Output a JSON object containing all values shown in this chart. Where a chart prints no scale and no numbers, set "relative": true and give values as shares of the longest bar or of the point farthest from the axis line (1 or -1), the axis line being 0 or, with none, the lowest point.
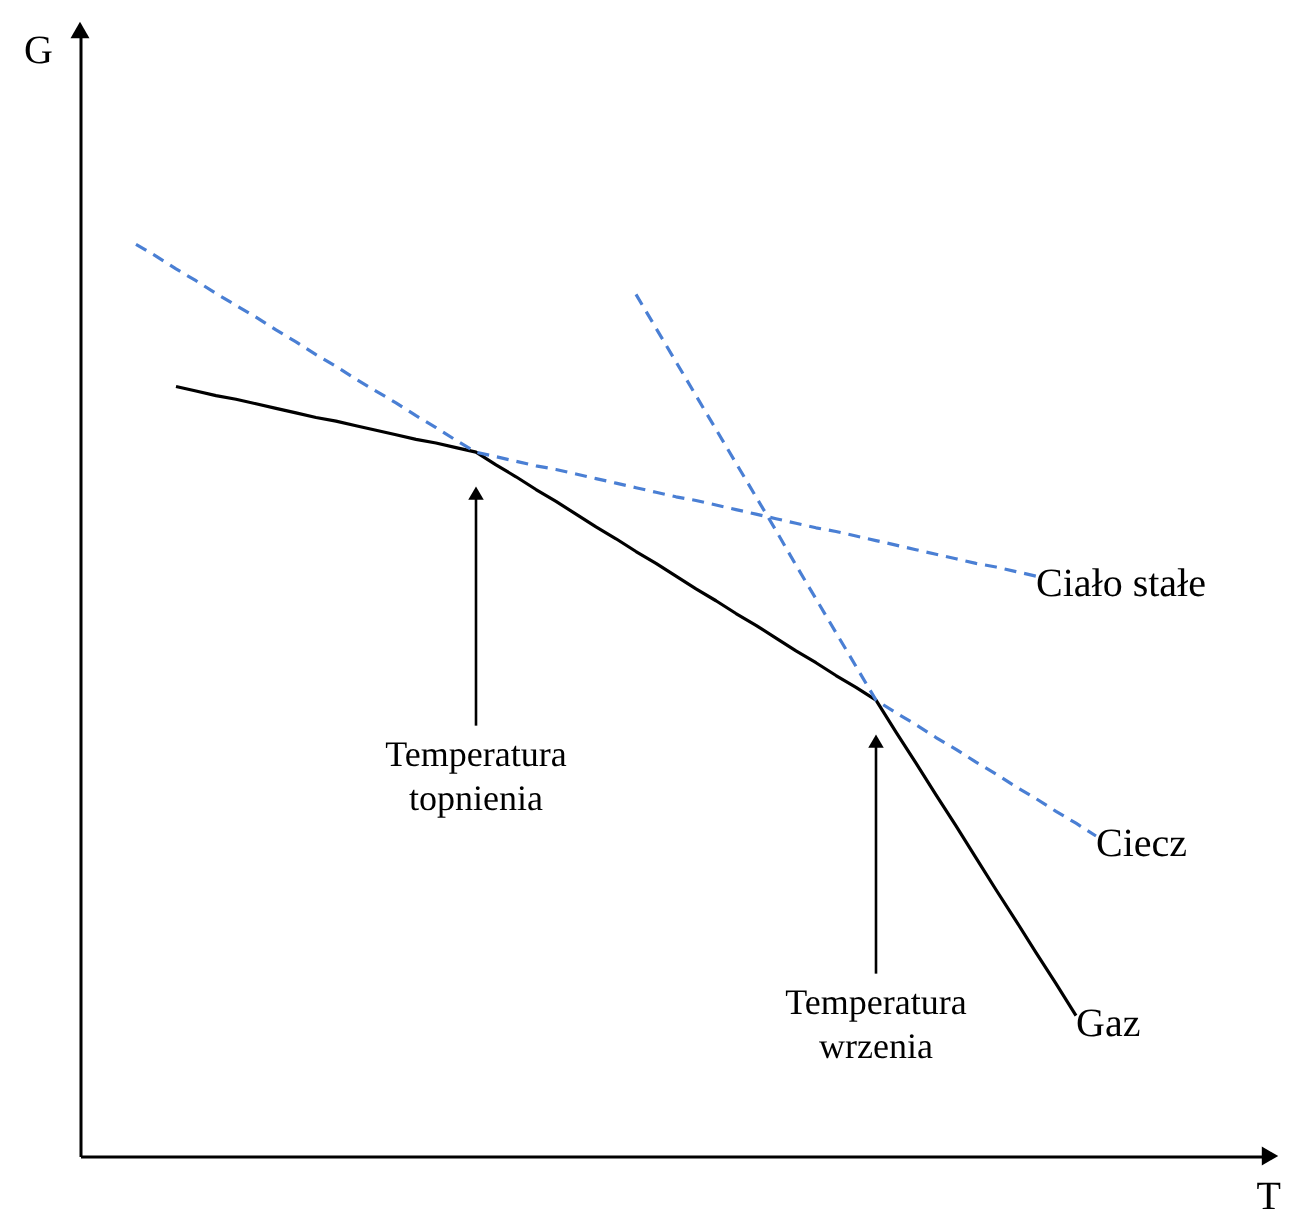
{
  "chart_data": {
    "type": "line",
    "relative": true,
    "xlabel": "T",
    "ylabel": "G",
    "marker": "none",
    "categories": [
      null,
      null,
      null,
      null,
      null,
      null,
      null,
      null,
      null,
      null,
      null,
      null,
      null,
      null,
      null,
      null,
      null,
      null,
      null,
      null,
      null,
      null,
      null,
      null,
      null,
      null,
      null,
      null,
      null,
      null,
      null,
      null,
      null,
      null,
      null,
      null,
      null,
      null,
      null,
      null,
      null,
      null,
      null,
      null,
      null,
      null,
      null,
      null,
      null
    ],
    "series": [
      {
        "name": "Gaz",
        "color": "#000000",
        "line_style": "solid",
        "values": [
          null,
          null,
          0.844,
          0.839,
          0.834,
          0.83,
          0.825,
          0.82,
          0.815,
          0.81,
          0.806,
          0.801,
          0.796,
          0.791,
          0.786,
          0.782,
          0.777,
          0.772,
          0.758,
          0.745,
          0.731,
          0.718,
          0.704,
          0.69,
          0.677,
          0.663,
          0.65,
          0.636,
          0.622,
          0.609,
          0.595,
          0.582,
          0.568,
          0.554,
          0.541,
          0.527,
          0.514,
          0.5,
          0.465,
          0.431,
          0.396,
          0.362,
          0.327,
          0.292,
          0.258,
          0.223,
          0.189,
          0.154,
          null
        ]
      },
      {
        "name": "Ciało stałe",
        "color": "#4a7fd4",
        "line_style": "dashed",
        "values": [
          1,
          0.987,
          0.973,
          0.96,
          0.946,
          0.933,
          0.92,
          0.906,
          0.893,
          0.879,
          0.866,
          0.852,
          0.839,
          0.826,
          0.812,
          0.799,
          0.785,
          0.772,
          0.767,
          0.762,
          0.757,
          0.753,
          0.748,
          0.743,
          0.738,
          0.733,
          0.728,
          0.723,
          0.719,
          0.714,
          0.709,
          0.704,
          0.699,
          0.694,
          0.689,
          0.685,
          0.68,
          0.675,
          0.67,
          0.665,
          0.66,
          0.655,
          0.65,
          0.646,
          0.641,
          0.636,
          null,
          null,
          null
        ]
      },
      {
        "name": "Ciecz",
        "color": "#4a7fd4",
        "line_style": "dashed",
        "values": [
          null,
          null,
          null,
          null,
          null,
          null,
          null,
          null,
          null,
          null,
          null,
          null,
          null,
          null,
          null,
          null,
          null,
          null,
          null,
          null,
          null,
          null,
          null,
          null,
          null,
          0.945,
          0.908,
          0.871,
          0.834,
          0.797,
          0.76,
          0.723,
          0.686,
          0.648,
          0.611,
          0.574,
          0.537,
          0.5,
          0.486,
          0.473,
          0.459,
          0.446,
          0.432,
          0.419,
          0.405,
          0.392,
          0.378,
          0.365,
          0.351
        ]
      }
    ],
    "annotations": [
      "Temperatura topnienia",
      "Temperatura wrzenia"
    ]
  }
}
